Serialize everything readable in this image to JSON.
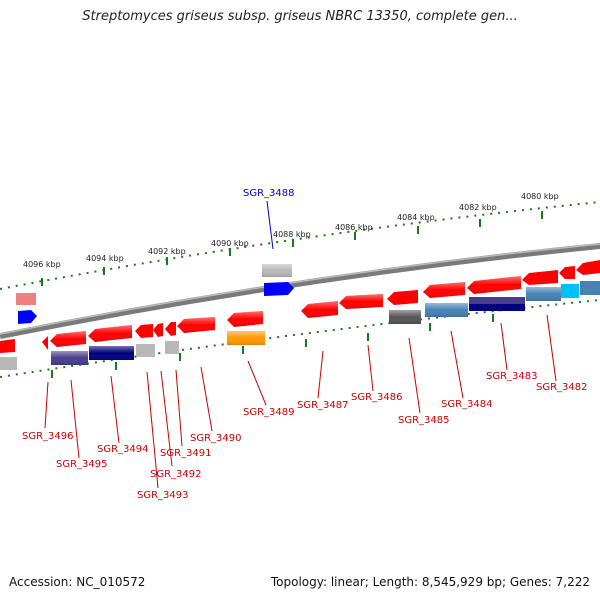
{
  "title": "Streptomyces griseus subsp. griseus NBRC 13350, complete gen...",
  "accession_label": "Accession: NC_010572",
  "topology_label": "Topology: linear; Length: 8,545,929 bp; Genes: 7,222",
  "scale_ticks": [
    "4096 kbp",
    "4094 kbp",
    "4092 kbp",
    "4090 kbp",
    "4088 kbp",
    "4086 kbp",
    "4084 kbp",
    "4082 kbp",
    "4080 kbp"
  ],
  "gene_labels": {
    "highlighted": "SGR_3488",
    "others": [
      "SGR_3496",
      "SGR_3495",
      "SGR_3494",
      "SGR_3493",
      "SGR_3492",
      "SGR_3491",
      "SGR_3490",
      "SGR_3489",
      "SGR_3487",
      "SGR_3486",
      "SGR_3485",
      "SGR_3484",
      "SGR_3483",
      "SGR_3482"
    ]
  },
  "colors": {
    "backbone": "#808080",
    "gene_red": "#ff0000",
    "gene_navy": "#000080",
    "gene_grey": "#b8b8b8",
    "gene_blue": "#0000ff",
    "gene_orange": "#ff9900",
    "gene_steelblue": "#4682b4",
    "gene_slate": "#483d8b",
    "gene_cyan": "#00bfff",
    "gene_pink": "#f08080",
    "gene_dim": "#555555",
    "scale_tick": "#228b22",
    "label_red": "#cc0000",
    "label_blue": "#0000cc"
  }
}
